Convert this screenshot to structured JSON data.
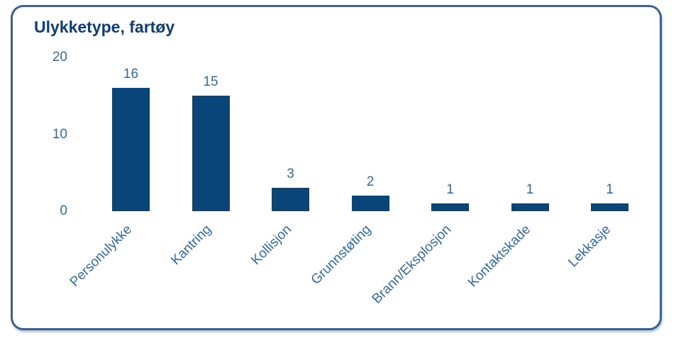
{
  "card": {
    "title": "Ulykketype, fartøy"
  },
  "colors": {
    "bar": "#0a4579",
    "axis_label": "#2f6ba8",
    "title": "#0d3e78",
    "card_border": "#33639a"
  },
  "chart_data": {
    "type": "bar",
    "title": "Ulykketype, fartøy",
    "categories": [
      "Personulykke",
      "Kantring",
      "Kollisjon",
      "Grunnstøting",
      "Brann/Eksplosjon",
      "Kontaktskade",
      "Lekkasje"
    ],
    "values": [
      16,
      15,
      3,
      2,
      1,
      1,
      1
    ],
    "data_labels": [
      16,
      15,
      3,
      2,
      1,
      1,
      1
    ],
    "yticks": [
      0,
      10,
      20
    ],
    "ylim": [
      0,
      20
    ],
    "xlabel": "",
    "ylabel": "",
    "grid": false,
    "legend": false,
    "x_label_rotation": -45,
    "bar_color": "#0a4579",
    "label_color": "#2f6ba8"
  }
}
